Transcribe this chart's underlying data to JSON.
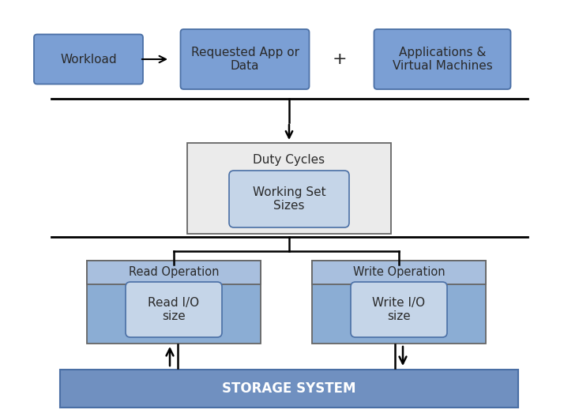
{
  "bg_color": "#ffffff",
  "blue_fill": "#7b9fd4",
  "blue_edge": "#4a6fa5",
  "light_blue_fill": "#a8bfde",
  "medium_blue_fill": "#8badd4",
  "gray_fill": "#ebebeb",
  "gray_edge": "#666666",
  "inner_blue_fill": "#c5d5e8",
  "storage_fill": "#7090c0",
  "storage_edge": "#4a6fa5",
  "text_dark": "#2a2a2a",
  "text_white": "#ffffff",
  "workload_label": "Workload",
  "requested_label": "Requested App or\nData",
  "applications_label": "Applications &\nVirtual Machines",
  "plus_label": "+",
  "duty_label": "Duty Cycles",
  "working_set_label": "Working Set\nSizes",
  "read_op_label": "Read Operation",
  "read_io_label": "Read I/O\nsize",
  "write_op_label": "Write Operation",
  "write_io_label": "Write I/O\nsize",
  "storage_label": "STORAGE SYSTEM",
  "xlim": [
    0,
    733
  ],
  "ylim": [
    0,
    528
  ]
}
